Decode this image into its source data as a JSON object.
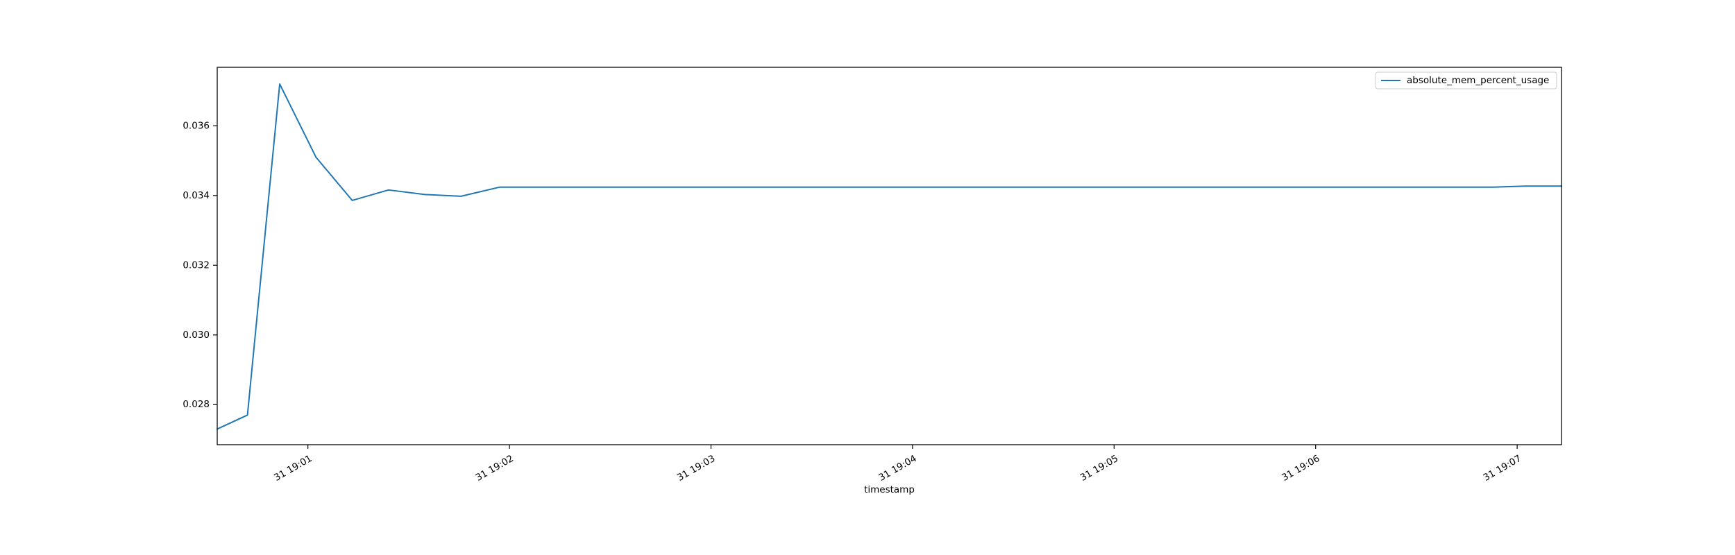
{
  "chart_data": {
    "type": "line",
    "title": "",
    "xlabel": "timestamp",
    "ylabel": "",
    "x_unit": "minutes after 19:00",
    "x_ticks": [
      {
        "value": 1,
        "label": "31 19:01"
      },
      {
        "value": 2,
        "label": "31 19:02"
      },
      {
        "value": 3,
        "label": "31 19:03"
      },
      {
        "value": 4,
        "label": "31 19:04"
      },
      {
        "value": 5,
        "label": "31 19:05"
      },
      {
        "value": 6,
        "label": "31 19:06"
      },
      {
        "value": 7,
        "label": "31 19:07"
      }
    ],
    "y_ticks": [
      {
        "value": 0.028,
        "label": "0.028"
      },
      {
        "value": 0.03,
        "label": "0.030"
      },
      {
        "value": 0.032,
        "label": "0.032"
      },
      {
        "value": 0.034,
        "label": "0.034"
      },
      {
        "value": 0.036,
        "label": "0.036"
      }
    ],
    "xlim": [
      0.55,
      7.22
    ],
    "ylim": [
      0.02685,
      0.03768
    ],
    "grid": false,
    "legend": "upper right",
    "series": [
      {
        "name": "absolute_mem_percent_usage",
        "color": "#1f77b4",
        "x": [
          0.55,
          0.7,
          0.86,
          1.04,
          1.22,
          1.4,
          1.58,
          1.76,
          1.95,
          2.2,
          3.0,
          4.0,
          5.0,
          6.0,
          6.5,
          6.88,
          7.04,
          7.22
        ],
        "y": [
          0.0273,
          0.0277,
          0.0372,
          0.0351,
          0.03386,
          0.03416,
          0.03403,
          0.03398,
          0.03424,
          0.03424,
          0.03424,
          0.03424,
          0.03424,
          0.03424,
          0.03424,
          0.03424,
          0.03427,
          0.03427
        ]
      }
    ]
  }
}
